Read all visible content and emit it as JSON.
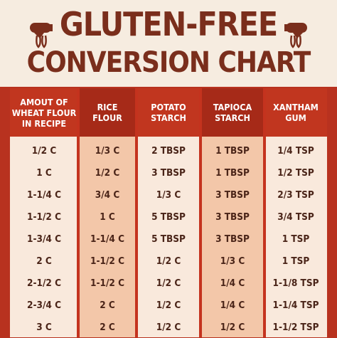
{
  "header": {
    "title_line1": "GLUTEN-FREE",
    "title_line2": "CONVERSION CHART",
    "left_icon": "hand-mixer-icon",
    "right_icon": "hand-mixer-icon"
  },
  "table": {
    "columns": [
      "AMOUT OF\nWHEAT FLOUR\nIN RECIPE",
      "RICE\nFLOUR",
      "POTATO\nSTARCH",
      "TAPIOCA\nSTARCH",
      "XANTHAM\nGUM"
    ],
    "rows": [
      [
        "1/2 C",
        "1/3 C",
        "2 TBSP",
        "1 TBSP",
        "1/4 TSP"
      ],
      [
        "1 C",
        "1/2 C",
        "3 TBSP",
        "1 TBSP",
        "1/2 TSP"
      ],
      [
        "1-1/4 C",
        "3/4 C",
        "1/3 C",
        "3 TBSP",
        "2/3 TSP"
      ],
      [
        "1-1/2 C",
        "1 C",
        "5 TBSP",
        "3 TBSP",
        "3/4 TSP"
      ],
      [
        "1-3/4 C",
        "1-1/4 C",
        "5 TBSP",
        "3 TBSP",
        "1 TSP"
      ],
      [
        "2 C",
        "1-1/2 C",
        "1/2 C",
        "1/3 C",
        "1 TSP"
      ],
      [
        "2-1/2 C",
        "1-1/2 C",
        "1/2 C",
        "1/4 C",
        "1-1/8 TSP"
      ],
      [
        "2-3/4 C",
        "2 C",
        "1/2 C",
        "1/4 C",
        "1-1/4 TSP"
      ],
      [
        "3 C",
        "2 C",
        "1/2 C",
        "1/2 C",
        "1-1/2 TSP"
      ]
    ]
  },
  "colors": {
    "border_red": "#b8321f",
    "header_bg": "#f6ece0",
    "title_brown": "#7a2e1c",
    "column_header_red": "#c1361f",
    "alt_column": "#f3c7a9",
    "base_column": "#f9e9dc",
    "cell_text": "#4a2418"
  }
}
